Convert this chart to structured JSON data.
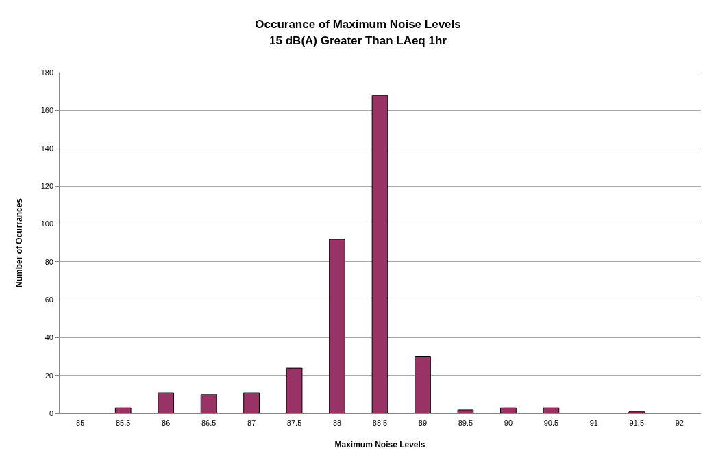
{
  "chart_data": {
    "type": "bar",
    "title": "Occurance of Maximum Noise Levels\n15 dB(A) Greater Than LAeq 1hr",
    "xlabel": "Maximum Noise Levels",
    "ylabel": "Number of Ocurrances",
    "categories": [
      "85",
      "85.5",
      "86",
      "86.5",
      "87",
      "87.5",
      "88",
      "88.5",
      "89",
      "89.5",
      "90",
      "90.5",
      "91",
      "91.5",
      "92"
    ],
    "values": [
      0,
      3,
      11,
      10,
      11,
      24,
      92,
      168,
      30,
      2,
      3,
      3,
      0,
      1,
      0
    ],
    "color": "#993366",
    "ylim": [
      0,
      180
    ],
    "yticks": [
      0,
      20,
      40,
      60,
      80,
      100,
      120,
      140,
      160,
      180
    ],
    "grid": "y"
  }
}
